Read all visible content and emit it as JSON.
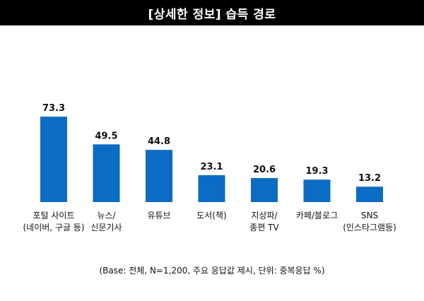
{
  "title": "[상세한 정보] 습득 경로",
  "footnote": "(Base: 전체, N=1,200, 주요 응답값 제시, 단위: 중복응답 %)",
  "colors": {
    "bar": "#0a6cc4",
    "title_bg": "#000000"
  },
  "chart_data": {
    "type": "bar",
    "title": "[상세한 정보] 습득 경로",
    "categories": [
      [
        "포털 사이트",
        "(네이버, 구글 등)"
      ],
      [
        "뉴스/",
        "신문기사"
      ],
      [
        "유튜브"
      ],
      [
        "도서(책)"
      ],
      [
        "지상파/",
        "종편 TV"
      ],
      [
        "카페/블로그"
      ],
      [
        "SNS",
        "(인스타그램등)"
      ]
    ],
    "values": [
      73.3,
      49.5,
      44.8,
      23.1,
      20.6,
      19.3,
      13.2
    ],
    "value_labels": [
      "73.3",
      "49.5",
      "44.8",
      "23.1",
      "20.6",
      "19.3",
      "13.2"
    ],
    "ylim": [
      0,
      100
    ],
    "grid": false,
    "legend": "none",
    "xlabel": "",
    "ylabel": ""
  }
}
